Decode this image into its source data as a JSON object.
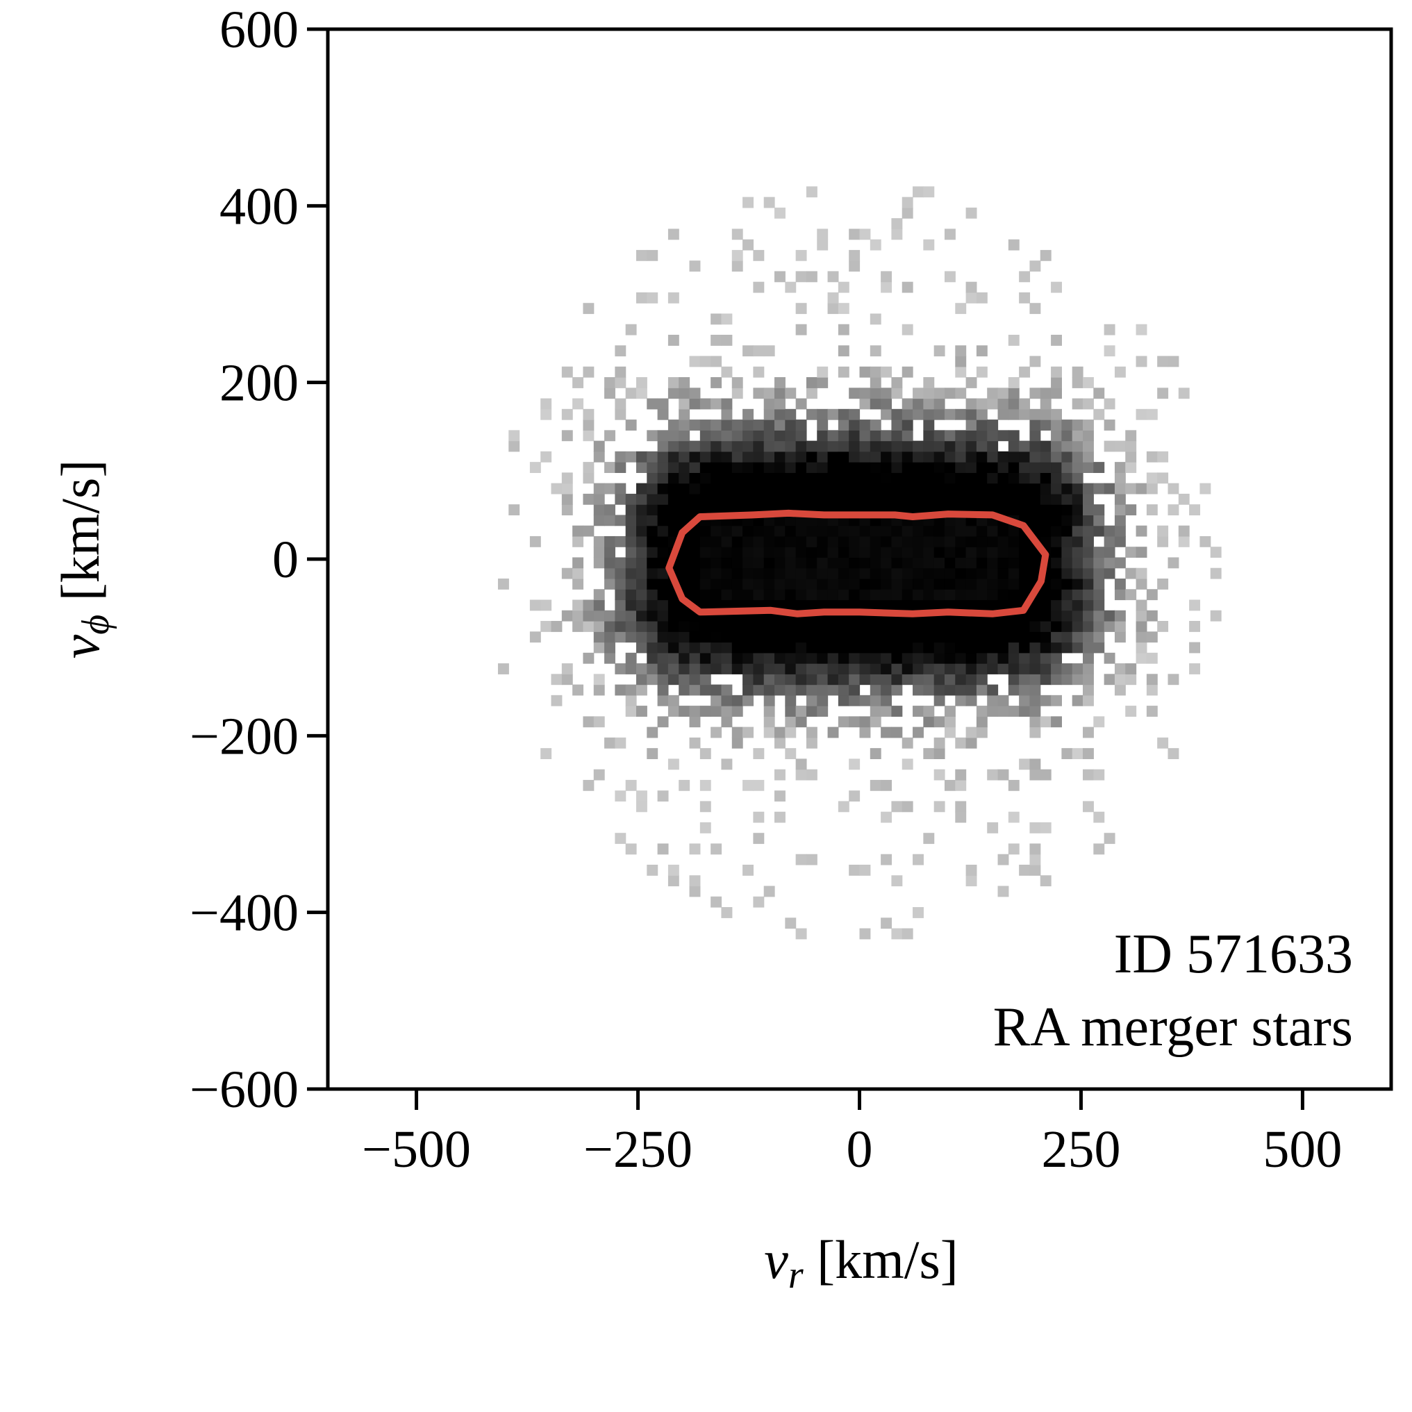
{
  "chart_data": {
    "type": "heatmap",
    "title": "",
    "xlabel": {
      "symbol": "v",
      "subscript": "r",
      "unit": " [km/s]"
    },
    "ylabel": {
      "symbol": "v",
      "subscript": "ϕ",
      "unit": " [km/s]"
    },
    "xlim": [
      -600,
      600
    ],
    "ylim": [
      -600,
      600
    ],
    "xticks": [
      -500,
      -250,
      0,
      250,
      500
    ],
    "yticks": [
      -600,
      -400,
      -200,
      0,
      200,
      400,
      600
    ],
    "xtick_labels": [
      "−500",
      "−250",
      "0",
      "250",
      "500"
    ],
    "ytick_labels": [
      "−600",
      "−400",
      "−200",
      "0",
      "200",
      "400",
      "600"
    ],
    "grid": false,
    "colormap": "greys",
    "distribution": {
      "center": [
        0,
        0
      ],
      "core_halfwidth": [
        185,
        45
      ],
      "outer_extent_vr": [
        -420,
        400
      ],
      "outer_extent_vphi": [
        -430,
        420
      ],
      "bin_size": 12
    },
    "contour": {
      "color": "#d9493c",
      "points": [
        [
          -180,
          48
        ],
        [
          -120,
          50
        ],
        [
          -80,
          52
        ],
        [
          -40,
          50
        ],
        [
          0,
          50
        ],
        [
          40,
          50
        ],
        [
          60,
          48
        ],
        [
          100,
          51
        ],
        [
          150,
          50
        ],
        [
          185,
          38
        ],
        [
          210,
          5
        ],
        [
          205,
          -25
        ],
        [
          185,
          -58
        ],
        [
          150,
          -62
        ],
        [
          100,
          -60
        ],
        [
          60,
          -62
        ],
        [
          0,
          -60
        ],
        [
          -40,
          -60
        ],
        [
          -70,
          -62
        ],
        [
          -100,
          -58
        ],
        [
          -180,
          -60
        ],
        [
          -200,
          -45
        ],
        [
          -215,
          -10
        ],
        [
          -200,
          30
        ]
      ]
    },
    "annotation": [
      "ID 571633",
      "RA merger stars"
    ]
  }
}
